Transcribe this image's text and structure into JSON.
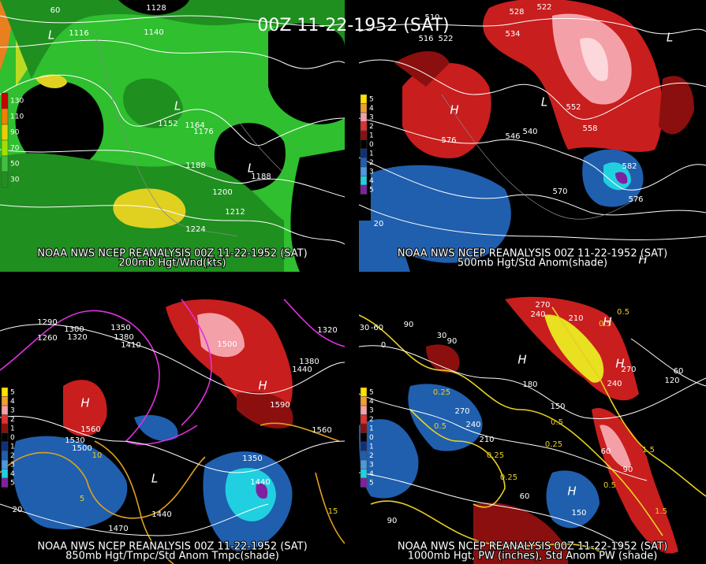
{
  "title": "00Z 11-22-1952 (SAT)",
  "panels": [
    {
      "caption": "NOAA NWS NCEP REANALYSIS 00Z 11-22-1952 (SAT)",
      "subcaption": "200mb Hgt/Wnd(kts)",
      "legend": [
        "130",
        "110",
        "90",
        "70",
        "50",
        "30"
      ],
      "labels": [
        "1128",
        "1116",
        "1140",
        "1152",
        "1164",
        "1176",
        "1188",
        "1200",
        "1212",
        "1224",
        "1188",
        "L",
        "L",
        "L",
        "60"
      ]
    },
    {
      "caption": "NOAA NWS NCEP REANALYSIS 00Z 11-22-1952 (SAT)",
      "subcaption": "500mb Hgt/Std Anom(shade)",
      "legend": [
        "5",
        "4",
        "3",
        "2",
        "1",
        "0",
        "1",
        "2",
        "3",
        "4",
        "5"
      ],
      "labels": [
        "510",
        "516",
        "522",
        "528",
        "522",
        "534",
        "552",
        "558",
        "546",
        "540",
        "576",
        "570",
        "582",
        "576",
        "20",
        "L",
        "H",
        "L",
        "H"
      ]
    },
    {
      "caption": "NOAA NWS NCEP REANALYSIS 00Z 11-22-1952 (SAT)",
      "subcaption": "850mb Hgt/Tmpc/Std Anom Tmpc(shade)",
      "legend": [
        "5",
        "4",
        "3",
        "2",
        "1",
        "0",
        "1",
        "2",
        "3",
        "4",
        "5"
      ],
      "labels": [
        "1290",
        "1260",
        "1300",
        "1320",
        "1350",
        "1380",
        "1410",
        "1500",
        "1590",
        "1560",
        "1560",
        "1530",
        "1500",
        "1470",
        "1440",
        "1440",
        "1350",
        "1320",
        "1380",
        "1440",
        "20",
        "10",
        "5",
        "15",
        "H",
        "H",
        "L"
      ]
    },
    {
      "caption": "NOAA NWS NCEP REANALYSIS 00Z 11-22-1952 (SAT)",
      "subcaption": "1000mb Hgt, PW (inches), Std Anom PW (shade)",
      "legend": [
        "5",
        "4",
        "3",
        "2",
        "1",
        "0",
        "1",
        "2",
        "3",
        "4",
        "5"
      ],
      "labels": [
        "90",
        "30",
        "-60",
        "0",
        "30",
        "90",
        "270",
        "240",
        "210",
        "0.5",
        "0.5",
        "H",
        "H",
        "H",
        "270",
        "240",
        "180",
        "120",
        "60",
        "0.25",
        "0.5",
        "270",
        "240",
        "210",
        "0.25",
        "0.5",
        "0.25",
        "150",
        "0.25",
        "60",
        "H",
        "150",
        "90",
        "1.5",
        "0.5",
        "90",
        "1.5",
        "60"
      ]
    }
  ]
}
